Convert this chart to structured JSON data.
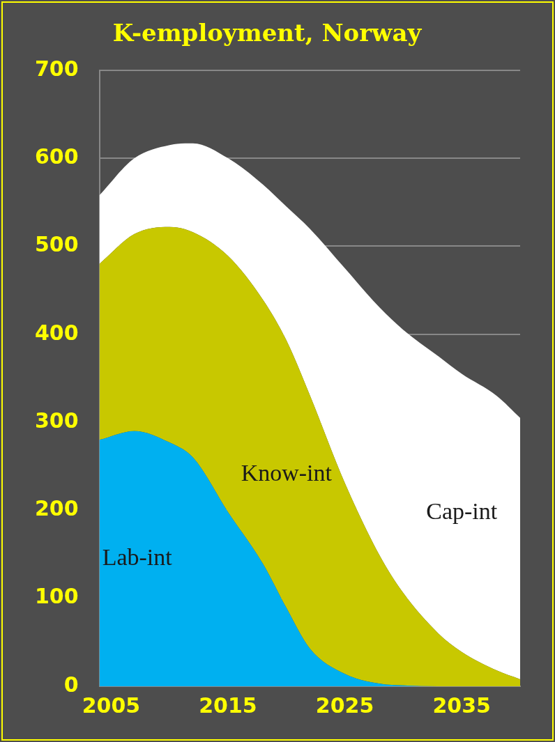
{
  "chart_data": {
    "type": "area",
    "title": "K-employment, Norway",
    "stacked": true,
    "grid": "y",
    "legend": false,
    "x": [
      2004,
      2007,
      2010,
      2012,
      2015,
      2018,
      2020,
      2022,
      2025,
      2028,
      2030,
      2033,
      2035,
      2038,
      2040
    ],
    "xlim": [
      2004,
      2040
    ],
    "xticks": [
      2005,
      2015,
      2025,
      2035
    ],
    "ylim": [
      0,
      700
    ],
    "yticks": [
      0,
      100,
      200,
      300,
      400,
      500,
      600,
      700
    ],
    "series": [
      {
        "name": "Lab-int",
        "color": "#00b0f0",
        "values": [
          280,
          290,
          277,
          260,
          198,
          139,
          89,
          43,
          14,
          3,
          1,
          0,
          0,
          0,
          0
        ]
      },
      {
        "name": "Know-int",
        "color": "#c8c800",
        "values": [
          200,
          224,
          245,
          256,
          291,
          300,
          304,
          288,
          217,
          145,
          105,
          60,
          39,
          18,
          8
        ]
      },
      {
        "name": "Cap-int",
        "color": "#ffffff",
        "values": [
          78,
          86,
          93,
          101,
          111,
          131,
          152,
          189,
          244,
          282,
          299,
          315,
          316,
          312,
          297
        ]
      }
    ]
  }
}
